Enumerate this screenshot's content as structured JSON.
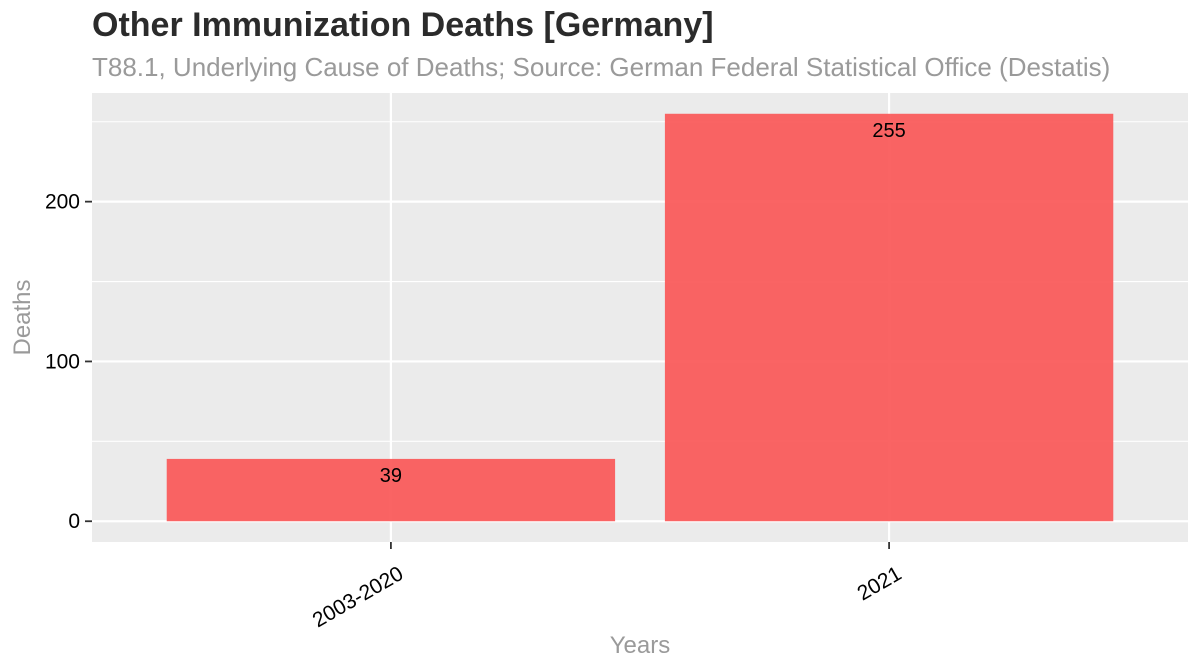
{
  "chart_data": {
    "type": "bar",
    "title": "Other Immunization Deaths [Germany]",
    "subtitle": "T88.1, Underlying Cause of Deaths; Source: German Federal Statistical Office (Destatis)",
    "xlabel": "Years",
    "ylabel": "Deaths",
    "categories": [
      "2003-2020",
      "2021"
    ],
    "values": [
      39,
      255
    ],
    "data_labels": [
      "39",
      "255"
    ],
    "ylim": [
      -13,
      268
    ],
    "y_ticks": [
      0,
      100,
      200
    ],
    "y_tick_labels": [
      "0",
      "100",
      "200"
    ],
    "grid": true,
    "legend": "none",
    "colors": {
      "bar": "#fa5c5c",
      "panel": "#ebebeb",
      "grid": "#ffffff",
      "axis_title": "#9a9a9a",
      "tick_label": "#000000"
    }
  }
}
